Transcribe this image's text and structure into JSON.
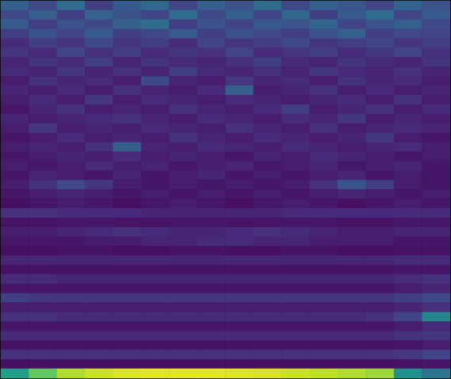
{
  "chart_data": {
    "type": "heatmap",
    "tick_labels": false,
    "zlim": [
      0,
      1
    ],
    "cells": [
      [
        0.3,
        0.22,
        0.35,
        0.18,
        0.28,
        0.33,
        0.2,
        0.3,
        0.25,
        0.35,
        0.22,
        0.3,
        0.27,
        0.2,
        0.32,
        0.25
      ],
      [
        0.22,
        0.3,
        0.18,
        0.32,
        0.25,
        0.2,
        0.35,
        0.22,
        0.3,
        0.2,
        0.33,
        0.18,
        0.28,
        0.35,
        0.2,
        0.28
      ],
      [
        0.28,
        0.18,
        0.25,
        0.22,
        0.3,
        0.35,
        0.18,
        0.25,
        0.2,
        0.28,
        0.25,
        0.32,
        0.2,
        0.25,
        0.3,
        0.22
      ],
      [
        0.18,
        0.25,
        0.2,
        0.28,
        0.18,
        0.22,
        0.28,
        0.18,
        0.25,
        0.22,
        0.18,
        0.25,
        0.3,
        0.18,
        0.22,
        0.2
      ],
      [
        0.12,
        0.18,
        0.15,
        0.22,
        0.15,
        0.18,
        0.12,
        0.2,
        0.15,
        0.18,
        0.22,
        0.15,
        0.18,
        0.2,
        0.15,
        0.18
      ],
      [
        0.15,
        0.12,
        0.2,
        0.14,
        0.18,
        0.12,
        0.16,
        0.14,
        0.2,
        0.12,
        0.15,
        0.18,
        0.12,
        0.16,
        0.2,
        0.14
      ],
      [
        0.1,
        0.15,
        0.12,
        0.18,
        0.1,
        0.15,
        0.12,
        0.1,
        0.14,
        0.18,
        0.12,
        0.1,
        0.15,
        0.12,
        0.1,
        0.15
      ],
      [
        0.12,
        0.1,
        0.16,
        0.1,
        0.14,
        0.1,
        0.18,
        0.12,
        0.1,
        0.14,
        0.1,
        0.16,
        0.12,
        0.1,
        0.14,
        0.1
      ],
      [
        0.08,
        0.14,
        0.1,
        0.12,
        0.08,
        0.22,
        0.1,
        0.08,
        0.16,
        0.1,
        0.12,
        0.08,
        0.14,
        0.1,
        0.12,
        0.08
      ],
      [
        0.1,
        0.08,
        0.12,
        0.08,
        0.14,
        0.1,
        0.08,
        0.12,
        0.3,
        0.08,
        0.1,
        0.14,
        0.08,
        0.12,
        0.08,
        0.1
      ],
      [
        0.08,
        0.12,
        0.08,
        0.16,
        0.08,
        0.12,
        0.1,
        0.08,
        0.12,
        0.1,
        0.08,
        0.1,
        0.12,
        0.08,
        0.14,
        0.08
      ],
      [
        0.06,
        0.1,
        0.14,
        0.08,
        0.1,
        0.08,
        0.14,
        0.1,
        0.08,
        0.12,
        0.18,
        0.08,
        0.1,
        0.14,
        0.08,
        0.12
      ],
      [
        0.1,
        0.08,
        0.1,
        0.12,
        0.14,
        0.1,
        0.08,
        0.12,
        0.1,
        0.08,
        0.12,
        0.1,
        0.16,
        0.08,
        0.1,
        0.08
      ],
      [
        0.08,
        0.16,
        0.08,
        0.1,
        0.08,
        0.12,
        0.1,
        0.08,
        0.14,
        0.1,
        0.08,
        0.14,
        0.08,
        0.1,
        0.12,
        0.1
      ],
      [
        0.06,
        0.08,
        0.12,
        0.08,
        0.1,
        0.08,
        0.14,
        0.1,
        0.08,
        0.12,
        0.1,
        0.08,
        0.1,
        0.16,
        0.08,
        0.06
      ],
      [
        0.08,
        0.1,
        0.08,
        0.14,
        0.3,
        0.1,
        0.08,
        0.12,
        0.1,
        0.08,
        0.12,
        0.1,
        0.08,
        0.1,
        0.12,
        0.08
      ],
      [
        0.06,
        0.08,
        0.1,
        0.08,
        0.12,
        0.08,
        0.1,
        0.08,
        0.06,
        0.1,
        0.08,
        0.12,
        0.1,
        0.08,
        0.06,
        0.08
      ],
      [
        0.08,
        0.06,
        0.08,
        0.12,
        0.08,
        0.1,
        0.06,
        0.08,
        0.1,
        0.06,
        0.08,
        0.1,
        0.06,
        0.08,
        0.1,
        0.06
      ],
      [
        0.06,
        0.1,
        0.08,
        0.06,
        0.1,
        0.06,
        0.08,
        0.1,
        0.06,
        0.08,
        0.06,
        0.08,
        0.1,
        0.06,
        0.08,
        0.06
      ],
      [
        0.08,
        0.14,
        0.22,
        0.16,
        0.08,
        0.06,
        0.08,
        0.06,
        0.08,
        0.06,
        0.08,
        0.14,
        0.26,
        0.18,
        0.08,
        0.06
      ],
      [
        0.06,
        0.08,
        0.1,
        0.08,
        0.06,
        0.08,
        0.06,
        0.08,
        0.06,
        0.08,
        0.06,
        0.08,
        0.1,
        0.08,
        0.06,
        0.08
      ],
      [
        0.04,
        0.06,
        0.08,
        0.06,
        0.04,
        0.06,
        0.08,
        0.06,
        0.04,
        0.06,
        0.08,
        0.06,
        0.04,
        0.06,
        0.08,
        0.06
      ],
      [
        0.14,
        0.14,
        0.12,
        0.12,
        0.12,
        0.1,
        0.1,
        0.1,
        0.1,
        0.1,
        0.12,
        0.12,
        0.12,
        0.12,
        0.12,
        0.12
      ],
      [
        0.05,
        0.05,
        0.06,
        0.06,
        0.05,
        0.05,
        0.06,
        0.06,
        0.05,
        0.05,
        0.06,
        0.06,
        0.05,
        0.05,
        0.06,
        0.06
      ],
      [
        0.08,
        0.08,
        0.1,
        0.12,
        0.14,
        0.12,
        0.1,
        0.1,
        0.12,
        0.14,
        0.12,
        0.1,
        0.08,
        0.08,
        0.1,
        0.1
      ],
      [
        0.06,
        0.06,
        0.06,
        0.08,
        0.08,
        0.1,
        0.1,
        0.12,
        0.12,
        0.1,
        0.1,
        0.08,
        0.08,
        0.08,
        0.06,
        0.06
      ],
      [
        0.04,
        0.04,
        0.05,
        0.05,
        0.04,
        0.04,
        0.05,
        0.05,
        0.04,
        0.04,
        0.05,
        0.05,
        0.04,
        0.04,
        0.05,
        0.05
      ],
      [
        0.1,
        0.1,
        0.1,
        0.1,
        0.1,
        0.1,
        0.1,
        0.1,
        0.1,
        0.1,
        0.1,
        0.1,
        0.1,
        0.1,
        0.12,
        0.12
      ],
      [
        0.05,
        0.05,
        0.05,
        0.05,
        0.05,
        0.05,
        0.05,
        0.05,
        0.05,
        0.05,
        0.05,
        0.05,
        0.05,
        0.05,
        0.06,
        0.06
      ],
      [
        0.12,
        0.12,
        0.1,
        0.1,
        0.1,
        0.1,
        0.1,
        0.1,
        0.1,
        0.1,
        0.1,
        0.1,
        0.1,
        0.1,
        0.12,
        0.14
      ],
      [
        0.06,
        0.06,
        0.06,
        0.06,
        0.06,
        0.06,
        0.06,
        0.06,
        0.06,
        0.06,
        0.06,
        0.06,
        0.06,
        0.06,
        0.08,
        0.1
      ],
      [
        0.18,
        0.16,
        0.16,
        0.16,
        0.16,
        0.16,
        0.16,
        0.16,
        0.16,
        0.16,
        0.16,
        0.16,
        0.16,
        0.16,
        0.18,
        0.22
      ],
      [
        0.08,
        0.08,
        0.08,
        0.08,
        0.08,
        0.08,
        0.08,
        0.08,
        0.08,
        0.08,
        0.08,
        0.08,
        0.08,
        0.08,
        0.1,
        0.14
      ],
      [
        0.14,
        0.14,
        0.12,
        0.12,
        0.12,
        0.12,
        0.12,
        0.12,
        0.12,
        0.12,
        0.12,
        0.12,
        0.12,
        0.14,
        0.2,
        0.45
      ],
      [
        0.06,
        0.06,
        0.06,
        0.06,
        0.06,
        0.06,
        0.06,
        0.06,
        0.06,
        0.06,
        0.06,
        0.06,
        0.06,
        0.06,
        0.08,
        0.12
      ],
      [
        0.12,
        0.12,
        0.12,
        0.12,
        0.12,
        0.12,
        0.12,
        0.12,
        0.12,
        0.12,
        0.12,
        0.12,
        0.12,
        0.12,
        0.14,
        0.16
      ],
      [
        0.05,
        0.05,
        0.05,
        0.05,
        0.05,
        0.05,
        0.05,
        0.05,
        0.05,
        0.05,
        0.05,
        0.05,
        0.05,
        0.05,
        0.06,
        0.08
      ],
      [
        0.14,
        0.14,
        0.14,
        0.14,
        0.14,
        0.14,
        0.14,
        0.14,
        0.14,
        0.14,
        0.14,
        0.14,
        0.14,
        0.14,
        0.16,
        0.2
      ],
      [
        0.04,
        0.04,
        0.04,
        0.04,
        0.04,
        0.04,
        0.04,
        0.04,
        0.04,
        0.04,
        0.04,
        0.04,
        0.04,
        0.04,
        0.05,
        0.06
      ],
      [
        0.55,
        0.75,
        0.88,
        0.92,
        0.95,
        0.96,
        0.96,
        0.96,
        0.95,
        0.94,
        0.92,
        0.9,
        0.88,
        0.85,
        0.5,
        0.38
      ]
    ]
  }
}
